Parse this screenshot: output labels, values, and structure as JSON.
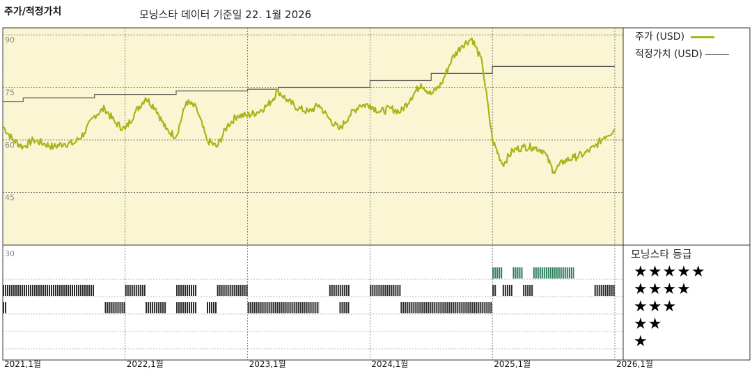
{
  "header": {
    "title": "주가/적정가치",
    "subtitle": "모닝스타 데이터 기준일 22. 1월 2026"
  },
  "legend": {
    "price_label": "주가 (USD)",
    "fair_value_label": "적정가치 (USD)"
  },
  "rating_panel": {
    "title": "모닝스타 등급",
    "levels": [
      "★★★★★",
      "★★★★",
      "★★★",
      "★★",
      "★"
    ]
  },
  "colors": {
    "price_line": "#a8b418",
    "fair_value_line": "#5a5a5a",
    "price_panel_bg": "#faf6d3",
    "rating_bar": "#2b2b2b",
    "rating_bar_top": "#2e7d5b"
  },
  "chart_data": {
    "type": "line",
    "title": "주가/적정가치",
    "x_tick_labels": [
      "2021,1월",
      "2022,1월",
      "2023,1월",
      "2024,1월",
      "2025,1월",
      "2026,1월"
    ],
    "x_range": [
      "2021-01",
      "2026-01"
    ],
    "y_tick_labels": [
      "90",
      "75",
      "60",
      "45",
      "30"
    ],
    "ylim": [
      30,
      92
    ],
    "grid": true,
    "series": [
      {
        "name": "주가 (USD)",
        "x": [
          "2021-01",
          "2021-02",
          "2021-03",
          "2021-04",
          "2021-05",
          "2021-06",
          "2021-07",
          "2021-08",
          "2021-09",
          "2021-10",
          "2021-11",
          "2021-12",
          "2022-01",
          "2022-02",
          "2022-03",
          "2022-04",
          "2022-05",
          "2022-06",
          "2022-07",
          "2022-08",
          "2022-09",
          "2022-10",
          "2022-11",
          "2022-12",
          "2023-01",
          "2023-02",
          "2023-03",
          "2023-04",
          "2023-05",
          "2023-06",
          "2023-07",
          "2023-08",
          "2023-09",
          "2023-10",
          "2023-11",
          "2023-12",
          "2024-01",
          "2024-02",
          "2024-03",
          "2024-04",
          "2024-05",
          "2024-06",
          "2024-07",
          "2024-08",
          "2024-09",
          "2024-10",
          "2024-11",
          "2024-12",
          "2025-01",
          "2025-02",
          "2025-03",
          "2025-04",
          "2025-05",
          "2025-06",
          "2025-07",
          "2025-08",
          "2025-09",
          "2025-10",
          "2025-11",
          "2025-12",
          "2026-01"
        ],
        "values": [
          64,
          60,
          58,
          60,
          59,
          58,
          59,
          59,
          62,
          67,
          69,
          65,
          63,
          68,
          72,
          69,
          63,
          61,
          71,
          69,
          60,
          58,
          64,
          67,
          67,
          68,
          70,
          74,
          71,
          69,
          68,
          70,
          66,
          63,
          67,
          70,
          70,
          68,
          69,
          68,
          72,
          76,
          73,
          76,
          83,
          87,
          89,
          82,
          60,
          53,
          57,
          58,
          58,
          57,
          51,
          54,
          55,
          56,
          58,
          61,
          63
        ]
      },
      {
        "name": "적정가치 (USD)",
        "x": [
          "2021-01",
          "2021-03",
          "2021-10",
          "2022-06",
          "2023-01",
          "2023-04",
          "2024-01",
          "2024-07",
          "2025-01",
          "2026-01"
        ],
        "values": [
          71,
          72,
          73,
          74,
          74.5,
          75,
          77,
          79,
          81,
          81
        ]
      }
    ],
    "rating_bars": [
      {
        "rating": 5,
        "ranges": [
          [
            "2025-01",
            "2025-02"
          ],
          [
            "2025-03",
            "2025-04"
          ],
          [
            "2025-05",
            "2025-09"
          ]
        ]
      },
      {
        "rating": 4,
        "ranges": [
          [
            "2021-01",
            "2021-10"
          ],
          [
            "2022-01",
            "2022-03"
          ],
          [
            "2022-06",
            "2022-08"
          ],
          [
            "2022-10",
            "2023-01"
          ],
          [
            "2023-09",
            "2023-11"
          ],
          [
            "2024-01",
            "2024-04"
          ],
          [
            "2025-01",
            "2025-01"
          ],
          [
            "2025-02",
            "2025-03"
          ],
          [
            "2025-04",
            "2025-05"
          ],
          [
            "2025-11",
            "2026-01"
          ]
        ]
      },
      {
        "rating": 3,
        "ranges": [
          [
            "2021-01",
            "2021-01"
          ],
          [
            "2021-11",
            "2022-01"
          ],
          [
            "2022-03",
            "2022-05"
          ],
          [
            "2022-06",
            "2022-08"
          ],
          [
            "2022-09",
            "2022-10"
          ],
          [
            "2023-01",
            "2023-08"
          ],
          [
            "2023-10",
            "2023-11"
          ],
          [
            "2024-04",
            "2025-01"
          ]
        ]
      }
    ]
  }
}
